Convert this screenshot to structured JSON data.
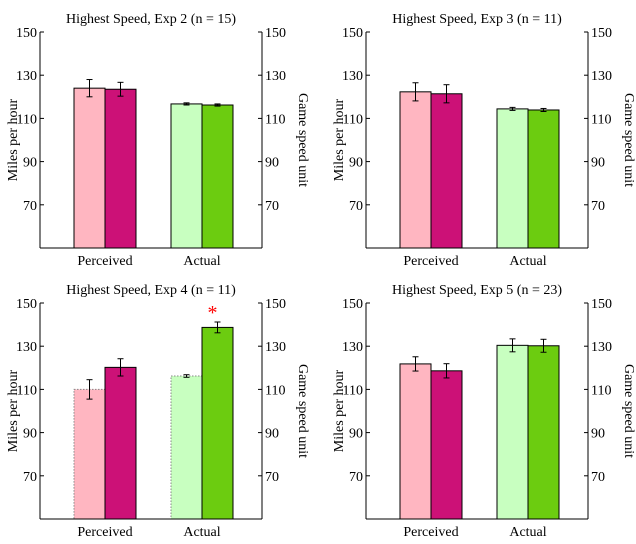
{
  "colors": {
    "perceived_light": "#ffb6c1",
    "perceived_dark": "#cc1177",
    "actual_light": "#c8ffc0",
    "actual_dark": "#6ccc10",
    "asterisk": "#ff0000"
  },
  "chart_data": [
    {
      "type": "bar",
      "title": "Highest Speed, Exp 2 (n = 15)",
      "ylabel": "Miles per hour",
      "ylabel_right": "Game speed unit",
      "categories": [
        "Perceived",
        "Actual"
      ],
      "ylim": [
        50,
        150
      ],
      "yticks": [
        70,
        90,
        110,
        130,
        150
      ],
      "right_ylim": [
        50,
        150
      ],
      "right_yticks": [
        70,
        90,
        110,
        130,
        150
      ],
      "bars": [
        {
          "group": 0,
          "shade": "light",
          "value": 124.0,
          "err": 4.0,
          "dotted": false
        },
        {
          "group": 0,
          "shade": "dark",
          "value": 123.5,
          "err": 3.2,
          "dotted": false
        },
        {
          "group": 1,
          "shade": "light",
          "value": 116.7,
          "err": 0.5,
          "dotted": false
        },
        {
          "group": 1,
          "shade": "dark",
          "value": 116.2,
          "err": 0.5,
          "dotted": false
        }
      ],
      "annotation": ""
    },
    {
      "type": "bar",
      "title": "Highest Speed, Exp 3 (n = 11)",
      "ylabel": "Miles per hour",
      "ylabel_right": "Game speed unit",
      "categories": [
        "Perceived",
        "Actual"
      ],
      "ylim": [
        50,
        150
      ],
      "yticks": [
        70,
        90,
        110,
        130,
        150
      ],
      "right_ylim": [
        50,
        150
      ],
      "right_yticks": [
        70,
        90,
        110,
        130,
        150
      ],
      "bars": [
        {
          "group": 0,
          "shade": "light",
          "value": 122.3,
          "err": 4.2,
          "dotted": false
        },
        {
          "group": 0,
          "shade": "dark",
          "value": 121.4,
          "err": 4.2,
          "dotted": false
        },
        {
          "group": 1,
          "shade": "light",
          "value": 114.4,
          "err": 0.7,
          "dotted": false
        },
        {
          "group": 1,
          "shade": "dark",
          "value": 113.9,
          "err": 0.7,
          "dotted": false
        }
      ],
      "annotation": ""
    },
    {
      "type": "bar",
      "title": "Highest Speed, Exp 4 (n = 11)",
      "ylabel": "Miles per hour",
      "ylabel_right": "Game speed unit",
      "categories": [
        "Perceived",
        "Actual"
      ],
      "ylim": [
        50,
        150
      ],
      "yticks": [
        70,
        90,
        110,
        130,
        150
      ],
      "right_ylim": [
        50,
        150
      ],
      "right_yticks": [
        70,
        90,
        110,
        130,
        150
      ],
      "bars": [
        {
          "group": 0,
          "shade": "light",
          "value": 110.0,
          "err": 4.5,
          "dotted": true
        },
        {
          "group": 0,
          "shade": "dark",
          "value": 120.2,
          "err": 4.0,
          "dotted": false
        },
        {
          "group": 1,
          "shade": "light",
          "value": 116.2,
          "err": 0.6,
          "dotted": true
        },
        {
          "group": 1,
          "shade": "dark",
          "value": 138.7,
          "err": 2.5,
          "dotted": false
        }
      ],
      "annotation": "*"
    },
    {
      "type": "bar",
      "title": "Highest Speed, Exp 5 (n = 23)",
      "ylabel": "Miles per hour",
      "ylabel_right": "Game speed unit",
      "categories": [
        "Perceived",
        "Actual"
      ],
      "ylim": [
        50,
        150
      ],
      "yticks": [
        70,
        90,
        110,
        130,
        150
      ],
      "right_ylim": [
        50,
        150
      ],
      "right_yticks": [
        70,
        90,
        110,
        130,
        150
      ],
      "bars": [
        {
          "group": 0,
          "shade": "light",
          "value": 121.8,
          "err": 3.3,
          "dotted": false
        },
        {
          "group": 0,
          "shade": "dark",
          "value": 118.6,
          "err": 3.3,
          "dotted": false
        },
        {
          "group": 1,
          "shade": "light",
          "value": 130.4,
          "err": 3.0,
          "dotted": false
        },
        {
          "group": 1,
          "shade": "dark",
          "value": 130.2,
          "err": 3.0,
          "dotted": false
        }
      ],
      "annotation": ""
    }
  ]
}
